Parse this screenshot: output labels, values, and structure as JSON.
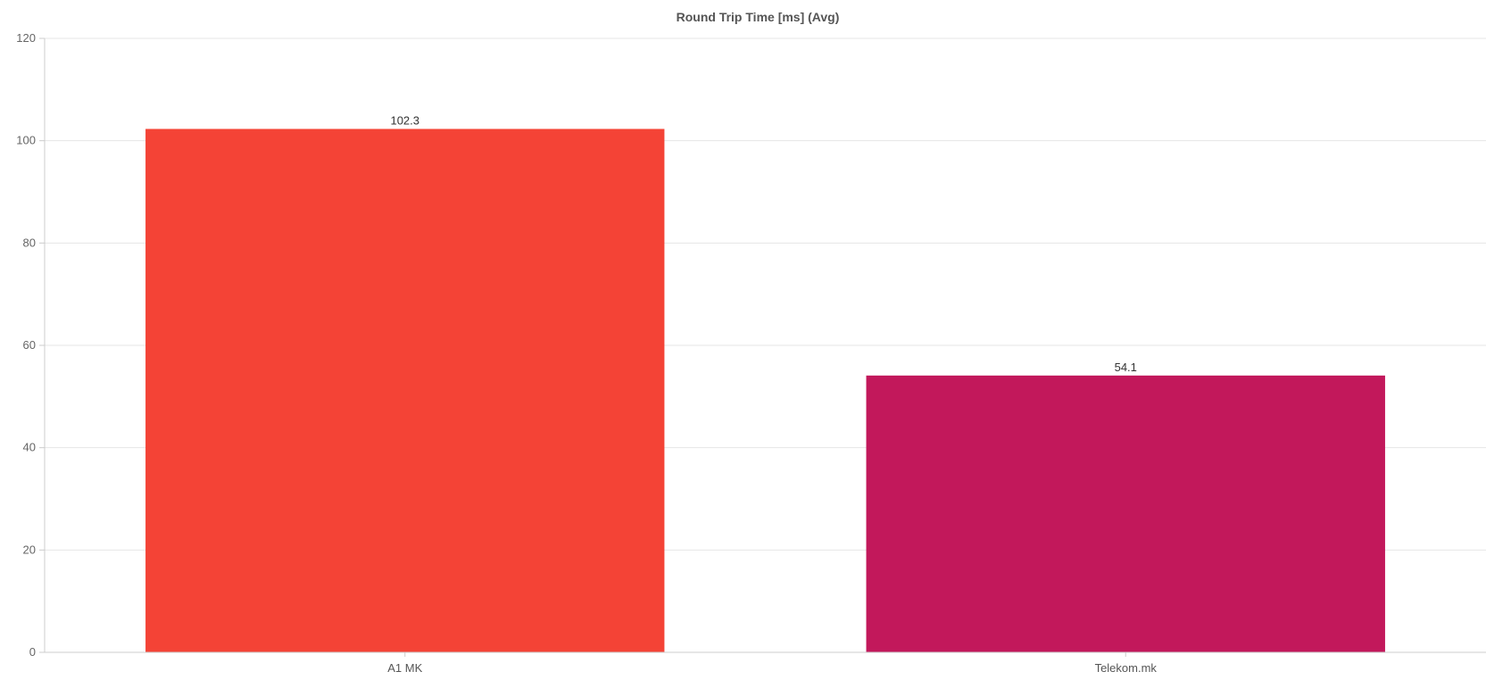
{
  "chart_data": {
    "type": "bar",
    "title": "Round Trip Time [ms] (Avg)",
    "xlabel": "",
    "ylabel": "",
    "categories": [
      "A1 MK",
      "Telekom.mk"
    ],
    "values": [
      102.3,
      54.1
    ],
    "value_labels": [
      "102.3",
      "54.1"
    ],
    "colors": [
      "#f44336",
      "#c2185b"
    ],
    "ylim": [
      0,
      120
    ],
    "yticks": [
      0,
      20,
      40,
      60,
      80,
      100,
      120
    ],
    "ytick_labels": [
      "0",
      "20",
      "40",
      "60",
      "80",
      "100",
      "120"
    ],
    "grid": true,
    "legend": "none"
  }
}
